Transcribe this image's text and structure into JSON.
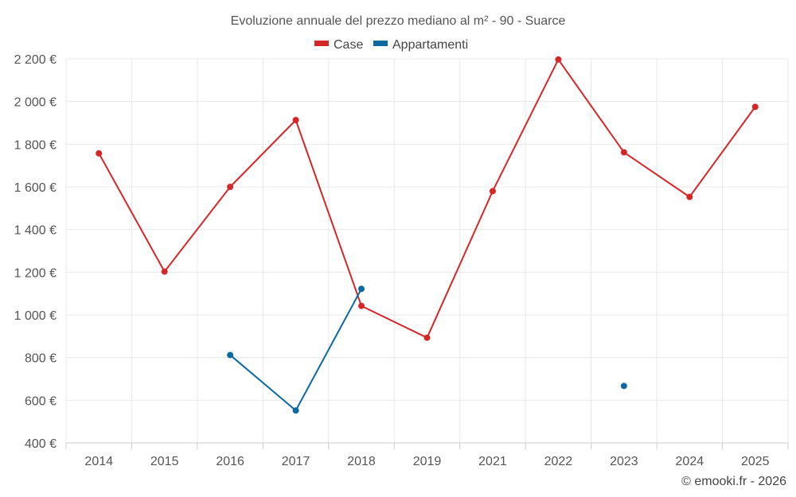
{
  "chart_data": {
    "type": "line",
    "title": "Evoluzione annuale del prezzo mediano al m² - 90 - Suarce",
    "categories": [
      "2014",
      "2015",
      "2016",
      "2017",
      "2018",
      "2019",
      "2021",
      "2022",
      "2023",
      "2024",
      "2025"
    ],
    "y_ticks": [
      "400 €",
      "600 €",
      "800 €",
      "1 000 €",
      "1 200 €",
      "1 400 €",
      "1 600 €",
      "1 800 €",
      "2 000 €",
      "2 200 €"
    ],
    "ylim": [
      400,
      2200
    ],
    "grid": true,
    "legend_position": "top-center",
    "series": [
      {
        "name": "Case",
        "color": "#d62728",
        "values": [
          1757,
          1203,
          1600,
          1913,
          1042,
          893,
          1580,
          2197,
          1762,
          1553,
          1975
        ]
      },
      {
        "name": "Appartamenti",
        "color": "#0b6aa2",
        "values": [
          null,
          null,
          812,
          552,
          1122,
          null,
          null,
          null,
          667,
          null,
          null
        ]
      }
    ]
  },
  "credit": "© emooki.fr - 2026"
}
